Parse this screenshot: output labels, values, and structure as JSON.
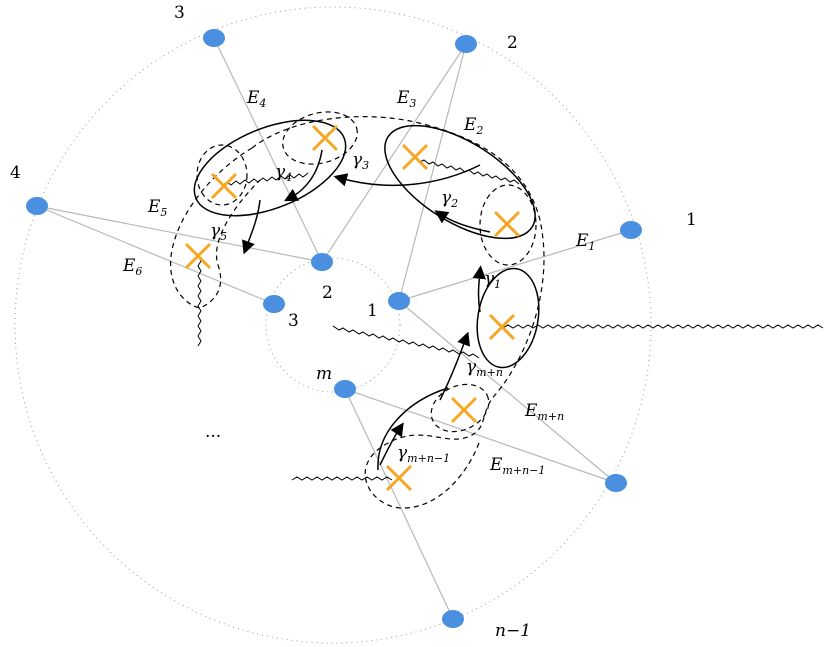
{
  "colors": {
    "node": "#4a8fe0",
    "cross": "#f5a623",
    "edge": "#b8b8b8",
    "circle": "#9a9a9a",
    "ink": "#000000"
  },
  "outer_labels": {
    "n1": "1",
    "n2": "2",
    "n3": "3",
    "n4": "4",
    "nminus1": "n−1"
  },
  "inner_labels": {
    "i1": "1",
    "i2": "2",
    "i3": "3",
    "im": "m"
  },
  "edge_labels": {
    "E1": {
      "base": "E",
      "sub": "1"
    },
    "E2": {
      "base": "E",
      "sub": "2"
    },
    "E3": {
      "base": "E",
      "sub": "3"
    },
    "E4": {
      "base": "E",
      "sub": "4"
    },
    "E5": {
      "base": "E",
      "sub": "5"
    },
    "E6": {
      "base": "E",
      "sub": "6"
    },
    "Emn": {
      "base": "E",
      "sub": "m+n"
    },
    "Emn1": {
      "base": "E",
      "sub": "m+n−1"
    }
  },
  "cycle_labels": {
    "g1": {
      "base": "γ",
      "sub": "1"
    },
    "g2": {
      "base": "γ",
      "sub": "2"
    },
    "g3": {
      "base": "γ",
      "sub": "3"
    },
    "g4": {
      "base": "γ",
      "sub": "4"
    },
    "g5": {
      "base": "γ",
      "sub": "5"
    },
    "gmn": {
      "base": "γ",
      "sub": "m+n"
    },
    "gmn1": {
      "base": "γ",
      "sub": "m+n−1"
    }
  },
  "ellipsis": "..."
}
